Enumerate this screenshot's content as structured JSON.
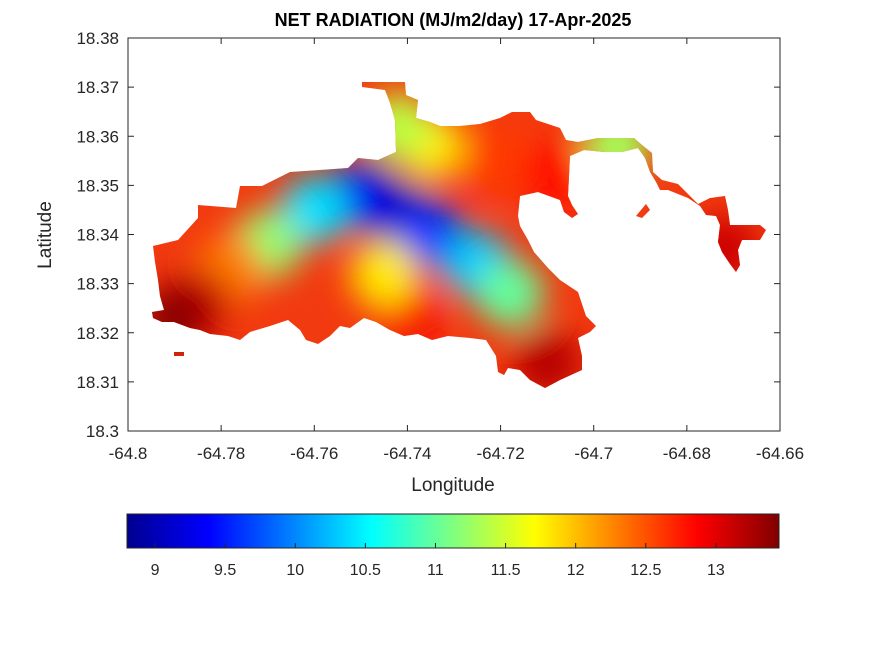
{
  "chart_data": {
    "type": "heatmap",
    "title": "NET RADIATION (MJ/m2/day) 17-Apr-2025",
    "xlabel": "Longitude",
    "ylabel": "Latitude",
    "xlim": [
      -64.8,
      -64.66
    ],
    "ylim": [
      18.3,
      18.38
    ],
    "x_ticks": [
      "-64.8",
      "-64.78",
      "-64.76",
      "-64.74",
      "-64.72",
      "-64.7",
      "-64.68",
      "-64.66"
    ],
    "y_ticks": [
      "18.3",
      "18.31",
      "18.32",
      "18.33",
      "18.34",
      "18.35",
      "18.36",
      "18.37",
      "18.38"
    ],
    "grid": false,
    "colormap": "jet",
    "colorbar": {
      "placement": "bottom",
      "range": [
        8.8,
        13.45
      ],
      "ticks": [
        "9",
        "9.5",
        "10",
        "10.5",
        "11",
        "11.5",
        "12",
        "12.5",
        "13"
      ]
    },
    "regions": [
      {
        "lon": -64.742,
        "lat": 18.344,
        "value": 9.0
      },
      {
        "lon": -64.75,
        "lat": 18.348,
        "value": 9.3
      },
      {
        "lon": -64.735,
        "lat": 18.34,
        "value": 9.6
      },
      {
        "lon": -64.725,
        "lat": 18.334,
        "value": 10.3
      },
      {
        "lon": -64.718,
        "lat": 18.328,
        "value": 11.0
      },
      {
        "lon": -64.76,
        "lat": 18.345,
        "value": 10.4
      },
      {
        "lon": -64.735,
        "lat": 18.358,
        "value": 11.8
      },
      {
        "lon": -64.742,
        "lat": 18.362,
        "value": 11.4
      },
      {
        "lon": -64.72,
        "lat": 18.355,
        "value": 12.6
      },
      {
        "lon": -64.708,
        "lat": 18.352,
        "value": 12.8
      },
      {
        "lon": -64.77,
        "lat": 18.338,
        "value": 11.2
      },
      {
        "lon": -64.778,
        "lat": 18.333,
        "value": 12.3
      },
      {
        "lon": -64.785,
        "lat": 18.326,
        "value": 13.1
      },
      {
        "lon": -64.79,
        "lat": 18.323,
        "value": 13.4
      },
      {
        "lon": -64.74,
        "lat": 18.325,
        "value": 12.9
      },
      {
        "lon": -64.71,
        "lat": 18.314,
        "value": 13.2
      },
      {
        "lon": -64.695,
        "lat": 18.358,
        "value": 11.3
      },
      {
        "lon": -64.672,
        "lat": 18.337,
        "value": 13.1
      },
      {
        "lon": -64.745,
        "lat": 18.332,
        "value": 11.8
      }
    ]
  }
}
